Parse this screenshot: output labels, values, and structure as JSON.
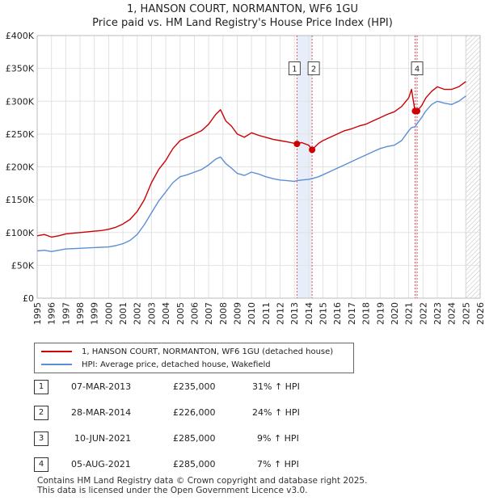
{
  "title_line1": "1, HANSON COURT, NORMANTON, WF6 1GU",
  "title_line2": "Price paid vs. HM Land Registry's House Price Index (HPI)",
  "chart_data": {
    "type": "line",
    "title": "1, HANSON COURT, NORMANTON, WF6 1GU — Price paid vs. HM Land Registry's House Price Index (HPI)",
    "xlabel": "",
    "ylabel": "",
    "xlim": [
      1995,
      2026
    ],
    "ylim": [
      0,
      400000
    ],
    "y_ticks": [
      0,
      50000,
      100000,
      150000,
      200000,
      250000,
      300000,
      350000,
      400000
    ],
    "y_tick_labels": [
      "£0",
      "£50K",
      "£100K",
      "£150K",
      "£200K",
      "£250K",
      "£300K",
      "£350K",
      "£400K"
    ],
    "x_ticks": [
      1995,
      1996,
      1997,
      1998,
      1999,
      2000,
      2001,
      2002,
      2003,
      2004,
      2005,
      2006,
      2007,
      2008,
      2009,
      2010,
      2011,
      2012,
      2013,
      2014,
      2015,
      2016,
      2017,
      2018,
      2019,
      2020,
      2021,
      2022,
      2023,
      2024,
      2025,
      2026
    ],
    "x_tick_labels": [
      "1995",
      "1996",
      "1997",
      "1998",
      "1999",
      "2000",
      "2001",
      "2002",
      "2003",
      "2004",
      "2005",
      "2006",
      "2007",
      "2008",
      "2009",
      "2010",
      "2011",
      "2012",
      "2013",
      "2014",
      "2015",
      "2016",
      "2017",
      "2018",
      "2019",
      "2020",
      "2021",
      "2022",
      "2023",
      "2024",
      "2025",
      "2026"
    ],
    "grid": true,
    "legend_position": "bottom-left (below plot)",
    "data_end_year": 2025.0,
    "series": [
      {
        "name": "1, HANSON COURT, NORMANTON, WF6 1GU (detached house)",
        "color": "#cc0000",
        "points": [
          [
            1995.0,
            95000
          ],
          [
            1995.5,
            97000
          ],
          [
            1996.0,
            93000
          ],
          [
            1996.5,
            95000
          ],
          [
            1997.0,
            98000
          ],
          [
            1997.5,
            99000
          ],
          [
            1998.0,
            100000
          ],
          [
            1998.5,
            101000
          ],
          [
            1999.0,
            102000
          ],
          [
            1999.5,
            103000
          ],
          [
            2000.0,
            105000
          ],
          [
            2000.5,
            108000
          ],
          [
            2001.0,
            113000
          ],
          [
            2001.5,
            120000
          ],
          [
            2002.0,
            132000
          ],
          [
            2002.5,
            150000
          ],
          [
            2003.0,
            176000
          ],
          [
            2003.5,
            196000
          ],
          [
            2004.0,
            210000
          ],
          [
            2004.5,
            228000
          ],
          [
            2005.0,
            240000
          ],
          [
            2005.5,
            245000
          ],
          [
            2006.0,
            250000
          ],
          [
            2006.5,
            255000
          ],
          [
            2007.0,
            265000
          ],
          [
            2007.5,
            280000
          ],
          [
            2007.83,
            287000
          ],
          [
            2008.2,
            270000
          ],
          [
            2008.6,
            262000
          ],
          [
            2009.0,
            250000
          ],
          [
            2009.5,
            245000
          ],
          [
            2010.0,
            252000
          ],
          [
            2010.5,
            248000
          ],
          [
            2011.0,
            245000
          ],
          [
            2011.5,
            242000
          ],
          [
            2012.0,
            240000
          ],
          [
            2012.5,
            238000
          ],
          [
            2013.0,
            236000
          ],
          [
            2013.18,
            235000
          ],
          [
            2013.5,
            237000
          ],
          [
            2014.0,
            233000
          ],
          [
            2014.24,
            226000
          ],
          [
            2014.7,
            236000
          ],
          [
            2015.0,
            240000
          ],
          [
            2015.5,
            245000
          ],
          [
            2016.0,
            250000
          ],
          [
            2016.5,
            255000
          ],
          [
            2017.0,
            258000
          ],
          [
            2017.5,
            262000
          ],
          [
            2018.0,
            265000
          ],
          [
            2018.5,
            270000
          ],
          [
            2019.0,
            275000
          ],
          [
            2019.5,
            280000
          ],
          [
            2020.0,
            284000
          ],
          [
            2020.5,
            292000
          ],
          [
            2021.0,
            305000
          ],
          [
            2021.2,
            318000
          ],
          [
            2021.44,
            285000
          ],
          [
            2021.59,
            285000
          ],
          [
            2021.9,
            293000
          ],
          [
            2022.2,
            305000
          ],
          [
            2022.6,
            315000
          ],
          [
            2023.0,
            322000
          ],
          [
            2023.5,
            318000
          ],
          [
            2024.0,
            318000
          ],
          [
            2024.5,
            322000
          ],
          [
            2025.0,
            330000
          ]
        ]
      },
      {
        "name": "HPI: Average price, detached house, Wakefield",
        "color": "#5b8fd4",
        "points": [
          [
            1995.0,
            72000
          ],
          [
            1995.5,
            73000
          ],
          [
            1996.0,
            71000
          ],
          [
            1996.5,
            73000
          ],
          [
            1997.0,
            75000
          ],
          [
            1997.5,
            75500
          ],
          [
            1998.0,
            76000
          ],
          [
            1998.5,
            76500
          ],
          [
            1999.0,
            77000
          ],
          [
            1999.5,
            77500
          ],
          [
            2000.0,
            78000
          ],
          [
            2000.5,
            80000
          ],
          [
            2001.0,
            83000
          ],
          [
            2001.5,
            88000
          ],
          [
            2002.0,
            97000
          ],
          [
            2002.5,
            112000
          ],
          [
            2003.0,
            130000
          ],
          [
            2003.5,
            148000
          ],
          [
            2004.0,
            162000
          ],
          [
            2004.5,
            176000
          ],
          [
            2005.0,
            185000
          ],
          [
            2005.5,
            188000
          ],
          [
            2006.0,
            192000
          ],
          [
            2006.5,
            196000
          ],
          [
            2007.0,
            203000
          ],
          [
            2007.5,
            212000
          ],
          [
            2007.83,
            215000
          ],
          [
            2008.2,
            205000
          ],
          [
            2008.6,
            198000
          ],
          [
            2009.0,
            190000
          ],
          [
            2009.5,
            187000
          ],
          [
            2010.0,
            192000
          ],
          [
            2010.5,
            189000
          ],
          [
            2011.0,
            185000
          ],
          [
            2011.5,
            182000
          ],
          [
            2012.0,
            180000
          ],
          [
            2012.5,
            179000
          ],
          [
            2013.0,
            178000
          ],
          [
            2013.18,
            179000
          ],
          [
            2013.5,
            180000
          ],
          [
            2014.0,
            181000
          ],
          [
            2014.24,
            182000
          ],
          [
            2014.7,
            185000
          ],
          [
            2015.0,
            188000
          ],
          [
            2015.5,
            193000
          ],
          [
            2016.0,
            198000
          ],
          [
            2016.5,
            203000
          ],
          [
            2017.0,
            208000
          ],
          [
            2017.5,
            213000
          ],
          [
            2018.0,
            218000
          ],
          [
            2018.5,
            223000
          ],
          [
            2019.0,
            228000
          ],
          [
            2019.5,
            231000
          ],
          [
            2020.0,
            233000
          ],
          [
            2020.5,
            240000
          ],
          [
            2021.0,
            255000
          ],
          [
            2021.2,
            260000
          ],
          [
            2021.44,
            261000
          ],
          [
            2021.59,
            266000
          ],
          [
            2021.9,
            275000
          ],
          [
            2022.2,
            285000
          ],
          [
            2022.6,
            295000
          ],
          [
            2023.0,
            300000
          ],
          [
            2023.5,
            297000
          ],
          [
            2024.0,
            295000
          ],
          [
            2024.5,
            300000
          ],
          [
            2025.0,
            308000
          ]
        ]
      }
    ],
    "sales": [
      {
        "id": "1",
        "x": 2013.18,
        "price": 235000,
        "date": "07-MAR-2013",
        "price_label": "£235,000",
        "hpi_label": "31% ↑ HPI",
        "label_y": 350000
      },
      {
        "id": "2",
        "x": 2014.24,
        "price": 226000,
        "date": "28-MAR-2014",
        "price_label": "£226,000",
        "hpi_label": "24% ↑ HPI",
        "label_y": 350000
      },
      {
        "id": "3",
        "x": 2021.44,
        "price": 285000,
        "date": "10-JUN-2021",
        "price_label": "£285,000",
        "hpi_label": "9% ↑ HPI",
        "label_y": null
      },
      {
        "id": "4",
        "x": 2021.59,
        "price": 285000,
        "date": "05-AUG-2021",
        "price_label": "£285,000",
        "hpi_label": "7% ↑ HPI",
        "label_y": 350000
      }
    ],
    "highlight_spans": [
      [
        2013.18,
        2014.24
      ],
      [
        2021.44,
        2021.59
      ]
    ]
  },
  "legend": {
    "items": [
      {
        "label": "1, HANSON COURT, NORMANTON, WF6 1GU (detached house)",
        "color": "#cc0000"
      },
      {
        "label": "HPI: Average price, detached house, Wakefield",
        "color": "#5b8fd4"
      }
    ]
  },
  "footer": {
    "line1": "Contains HM Land Registry data © Crown copyright and database right 2025.",
    "line2": "This data is licensed under the Open Government Licence v3.0."
  }
}
